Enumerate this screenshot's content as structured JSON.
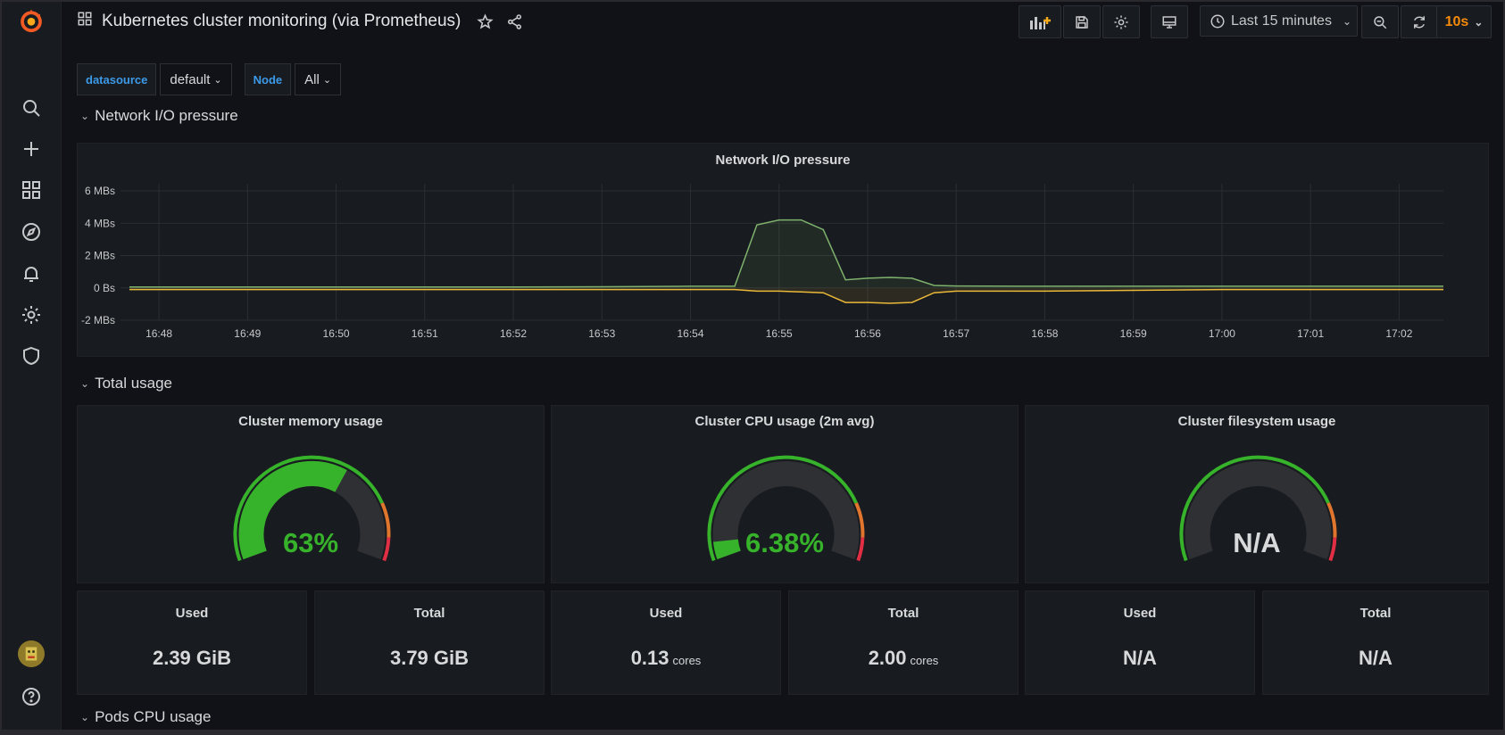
{
  "topbar": {
    "title": "Kubernetes cluster monitoring (via Prometheus)",
    "time_range": "Last 15 minutes",
    "refresh": "10s"
  },
  "sidebar": {
    "icons": [
      "grafana-logo-icon",
      "search-icon",
      "plus-icon",
      "dashboards-icon",
      "explore-icon",
      "alerting-icon",
      "gear-icon",
      "shield-icon",
      "avatar",
      "help-icon"
    ]
  },
  "variables": [
    {
      "label": "datasource",
      "value": "default"
    },
    {
      "label": "Node",
      "value": "All"
    }
  ],
  "rows": {
    "network": "Network I/O pressure",
    "total": "Total usage",
    "pods": "Pods CPU usage"
  },
  "network_panel": {
    "title": "Network I/O pressure"
  },
  "gauges": [
    {
      "title": "Cluster memory usage",
      "value": "63%",
      "fraction": 0.63,
      "color": "#37b22b"
    },
    {
      "title": "Cluster CPU usage (2m avg)",
      "value": "6.38%",
      "fraction": 0.0638,
      "color": "#37b22b"
    },
    {
      "title": "Cluster filesystem usage",
      "value": "N/A",
      "fraction": 0,
      "color": "#d8d9da"
    }
  ],
  "stats": [
    {
      "title": "Used",
      "value": "2.39 GiB",
      "unit": ""
    },
    {
      "title": "Total",
      "value": "3.79 GiB",
      "unit": ""
    },
    {
      "title": "Used",
      "value": "0.13",
      "unit": "cores"
    },
    {
      "title": "Total",
      "value": "2.00",
      "unit": "cores"
    },
    {
      "title": "Used",
      "value": "N/A",
      "unit": ""
    },
    {
      "title": "Total",
      "value": "N/A",
      "unit": ""
    }
  ],
  "colors": {
    "green": "#37b22b",
    "orange": "#e0752d",
    "red": "#e02f44",
    "series_received": "#7eb26d",
    "series_transmitted": "#eab839"
  },
  "chart_data": {
    "type": "line",
    "title": "Network I/O pressure",
    "x": [
      "16:47:40",
      "16:48",
      "16:49",
      "16:50",
      "16:51",
      "16:52",
      "16:53",
      "16:54",
      "16:54:30",
      "16:54:45",
      "16:55",
      "16:55:15",
      "16:55:30",
      "16:55:45",
      "16:56",
      "16:56:15",
      "16:56:30",
      "16:56:45",
      "16:57",
      "16:58",
      "16:59",
      "17:00",
      "17:01",
      "17:02",
      "17:02:30"
    ],
    "xticks": [
      "16:48",
      "16:49",
      "16:50",
      "16:51",
      "16:52",
      "16:53",
      "16:54",
      "16:55",
      "16:56",
      "16:57",
      "16:58",
      "16:59",
      "17:00",
      "17:01",
      "17:02"
    ],
    "yticks": [
      "6 MBs",
      "4 MBs",
      "2 MBs",
      "0 Bs",
      "-2 MBs"
    ],
    "ylim": [
      -2,
      6
    ],
    "series": [
      {
        "values": [
          0.05,
          0.05,
          0.05,
          0.05,
          0.05,
          0.05,
          0.07,
          0.1,
          0.1,
          3.9,
          4.2,
          4.2,
          3.6,
          0.5,
          0.6,
          0.65,
          0.6,
          0.15,
          0.12,
          0.1,
          0.1,
          0.1,
          0.1,
          0.1,
          0.1
        ]
      },
      {
        "values": [
          -0.1,
          -0.1,
          -0.1,
          -0.1,
          -0.1,
          -0.1,
          -0.1,
          -0.1,
          -0.1,
          -0.2,
          -0.2,
          -0.25,
          -0.3,
          -0.9,
          -0.9,
          -0.95,
          -0.9,
          -0.3,
          -0.2,
          -0.2,
          -0.15,
          -0.1,
          -0.1,
          -0.1,
          -0.1
        ]
      }
    ],
    "grid": true
  }
}
